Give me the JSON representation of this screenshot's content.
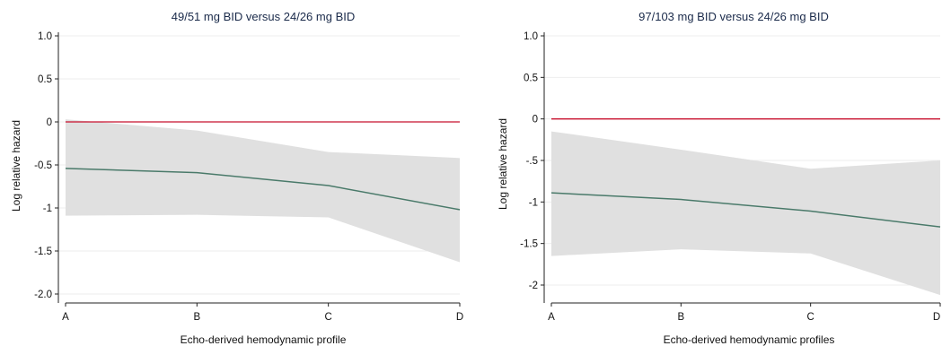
{
  "chart_data": [
    {
      "type": "line",
      "title": "49/51 mg BID versus 24/26 mg BID",
      "xlabel": "Echo-derived hemodynamic profile",
      "ylabel": "Log relative hazard",
      "categories": [
        "A",
        "B",
        "C",
        "D"
      ],
      "ylim": [
        -2.0,
        1.0
      ],
      "ytick_labels": [
        "1.0",
        "0.5",
        "0",
        "-0.5",
        "-1",
        "-1.5",
        "-2.0"
      ],
      "yticks": [
        1.0,
        0.5,
        0,
        -0.5,
        -1,
        -1.5,
        -2.0
      ],
      "reference_line": 0,
      "grid": true,
      "series": [
        {
          "values": [
            -0.54,
            -0.59,
            -0.74,
            -1.02
          ]
        }
      ],
      "ci_lower": [
        -1.09,
        -1.08,
        -1.11,
        -1.63
      ],
      "ci_upper": [
        0.03,
        -0.1,
        -0.35,
        -0.42
      ],
      "colors": {
        "line": "#4a7a6a",
        "band": "#e0e0e0",
        "reference": "#c8102e"
      }
    },
    {
      "type": "line",
      "title": "97/103 mg BID versus 24/26 mg BID",
      "xlabel": "Echo-derived hemodynamic profiles",
      "ylabel": "Log relative hazard",
      "categories": [
        "A",
        "B",
        "C",
        "D"
      ],
      "ylim": [
        -2.0,
        1.0
      ],
      "ytick_labels": [
        "1.0",
        "0.5",
        "0",
        "-.5",
        "-1",
        "-1.5",
        "-2"
      ],
      "yticks": [
        1.0,
        0.5,
        0,
        -0.5,
        -1,
        -1.5,
        -2
      ],
      "reference_line": 0,
      "grid": true,
      "series": [
        {
          "values": [
            -0.89,
            -0.97,
            -1.11,
            -1.3
          ]
        }
      ],
      "ci_lower": [
        -1.65,
        -1.57,
        -1.62,
        -2.12
      ],
      "ci_upper": [
        -0.15,
        -0.37,
        -0.6,
        -0.5
      ],
      "colors": {
        "line": "#4a7a6a",
        "band": "#e0e0e0",
        "reference": "#c8102e"
      }
    }
  ]
}
